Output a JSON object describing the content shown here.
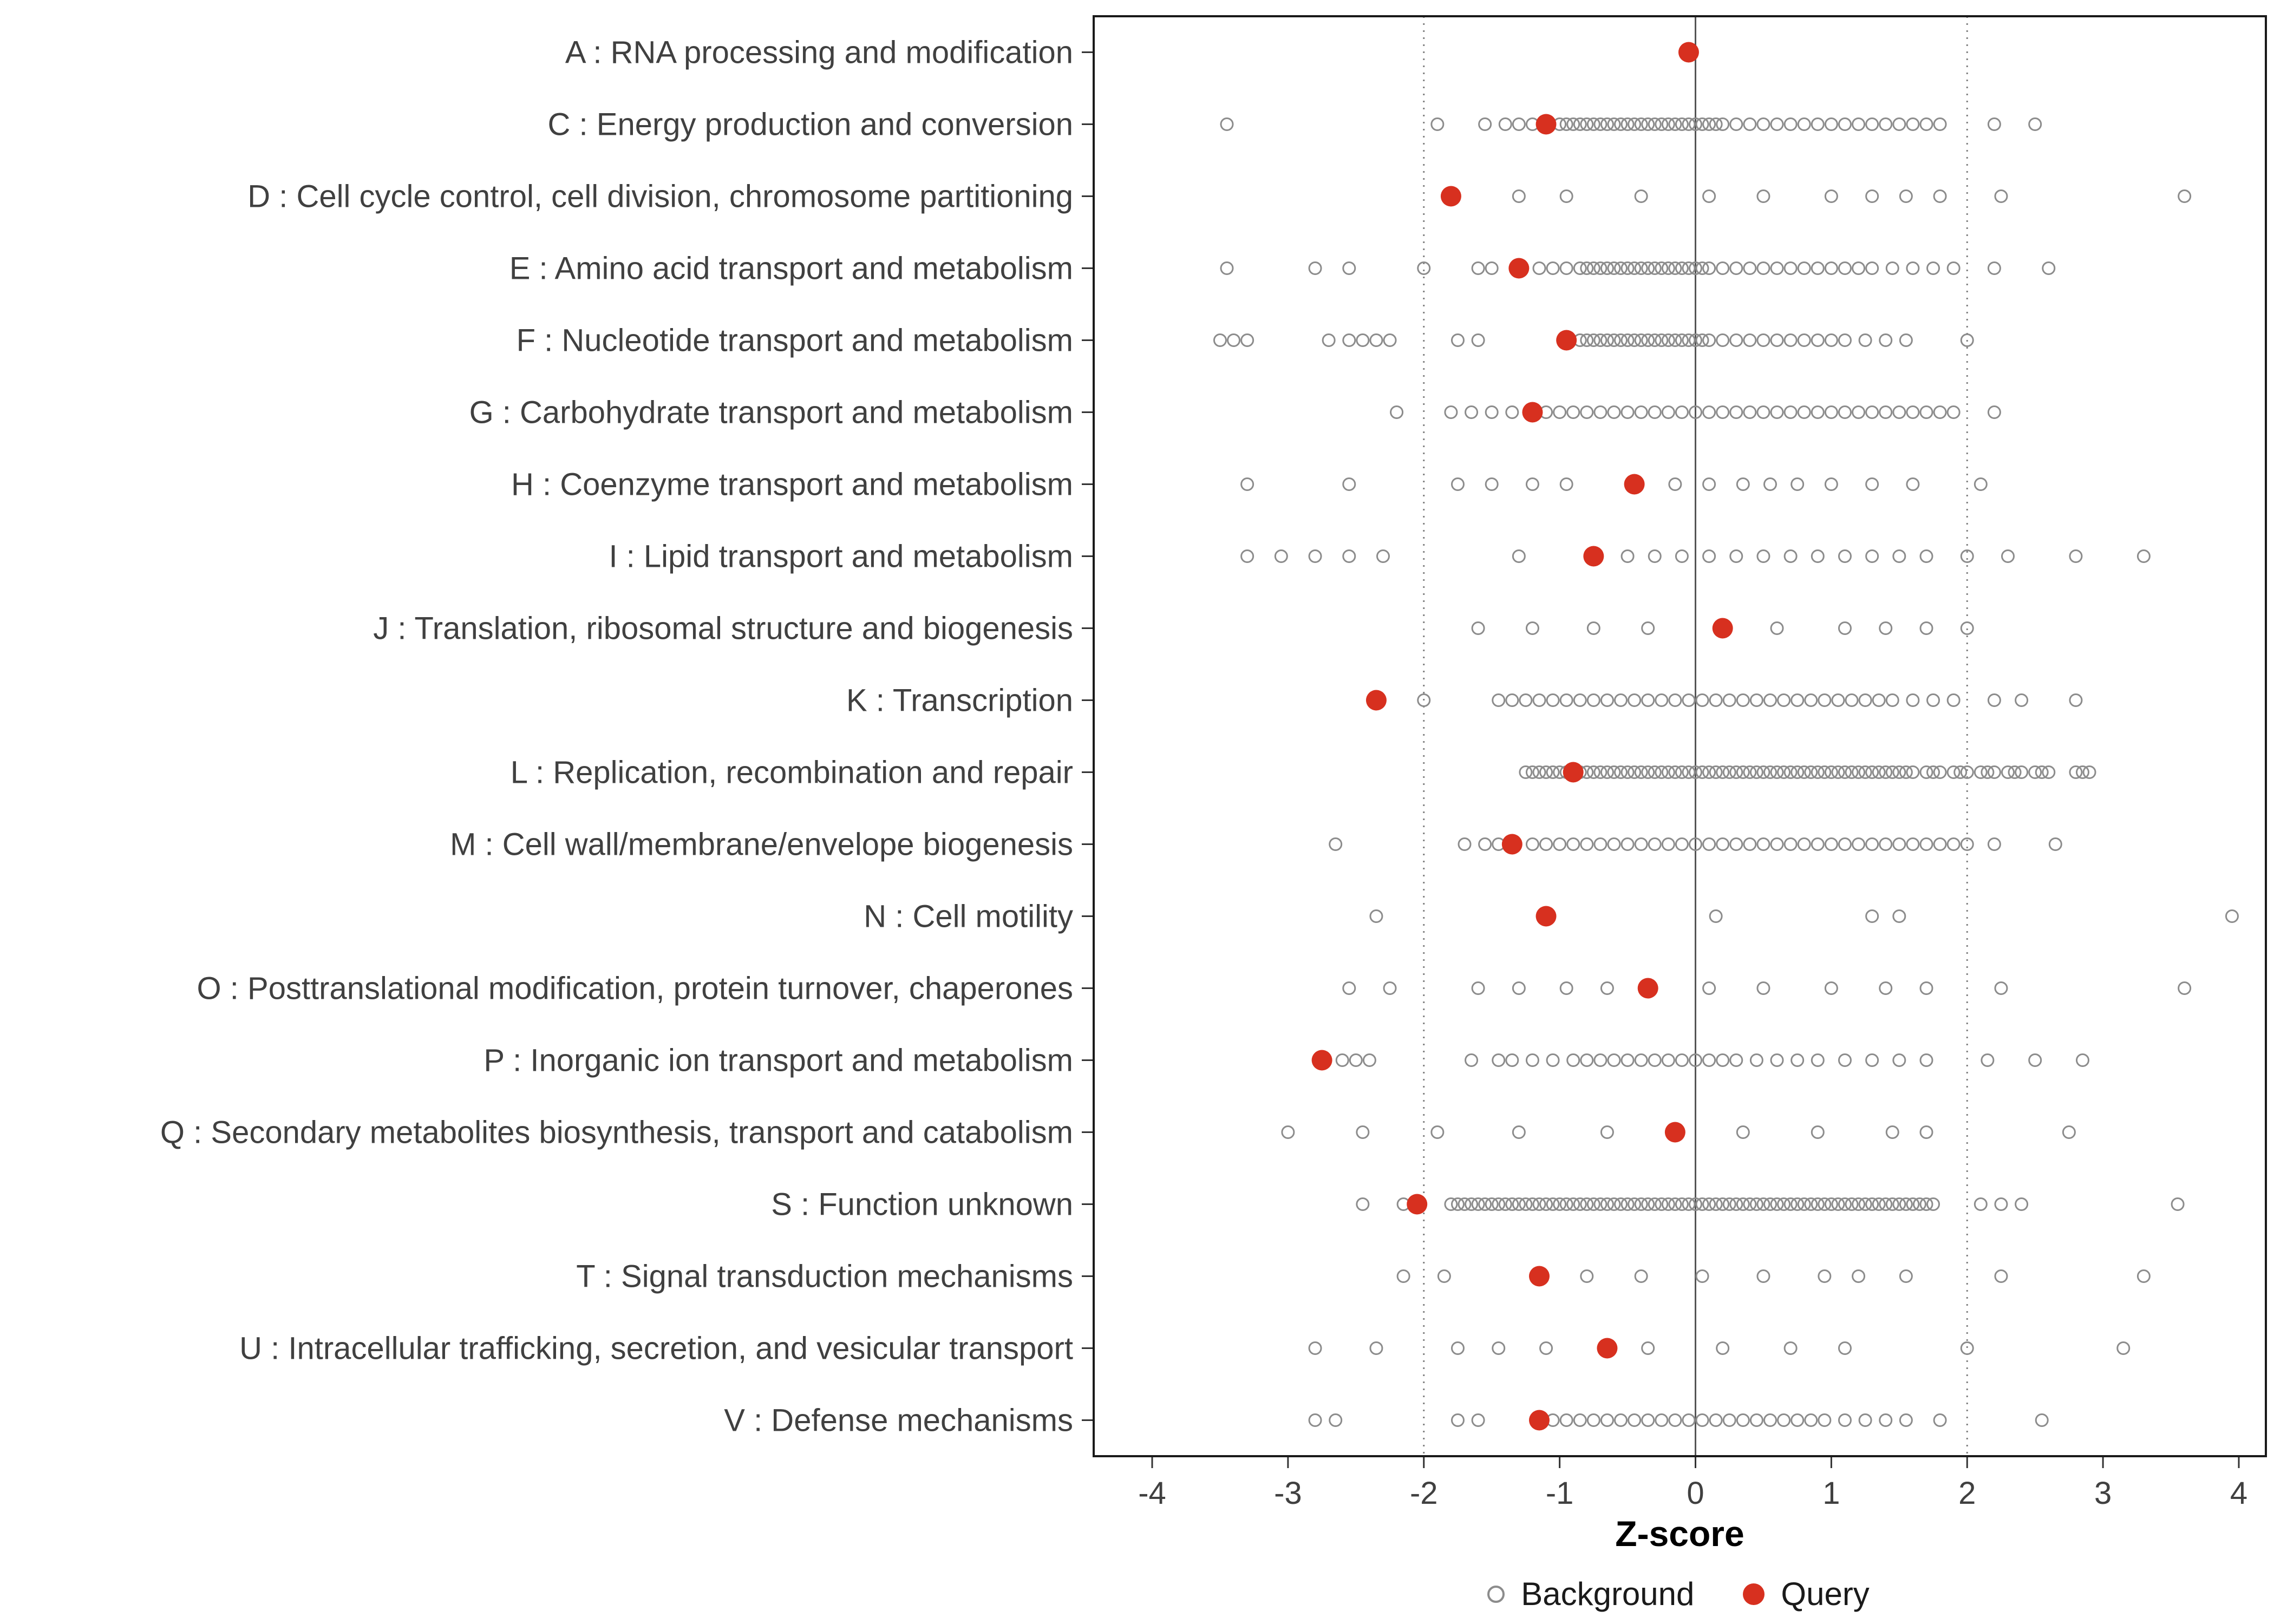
{
  "chart_data": {
    "type": "scatter",
    "title": "",
    "xlabel": "Z-score",
    "xlim": [
      -4,
      4
    ],
    "x_ticks": [
      -4,
      -3,
      -2,
      -1,
      0,
      1,
      2,
      3,
      4
    ],
    "grid": "off",
    "reference_lines": {
      "solid": [
        0
      ],
      "dotted": [
        -2,
        2
      ]
    },
    "legend": {
      "background_label": "Background",
      "query_label": "Query",
      "position": "bottom"
    },
    "colors": {
      "query": "#D7301F",
      "background_stroke": "#8C8C8C",
      "axis_text": "#404040",
      "panel_border": "#1a1a1a",
      "zero_line": "#555555",
      "dotted_line": "#808080"
    },
    "categories": [
      {
        "label": "A : RNA processing and modification",
        "query": -0.05,
        "background": []
      },
      {
        "label": "C : Energy production and conversion",
        "query": -1.1,
        "background": [
          -3.45,
          -1.9,
          -1.55,
          -1.4,
          -1.3,
          -1.2,
          -1.1,
          -1.0,
          -0.95,
          -0.9,
          -0.85,
          -0.8,
          -0.75,
          -0.7,
          -0.65,
          -0.6,
          -0.55,
          -0.5,
          -0.45,
          -0.4,
          -0.35,
          -0.3,
          -0.25,
          -0.2,
          -0.15,
          -0.1,
          -0.05,
          0,
          0.05,
          0.1,
          0.15,
          0.2,
          0.3,
          0.4,
          0.5,
          0.6,
          0.7,
          0.8,
          0.9,
          1.0,
          1.1,
          1.2,
          1.3,
          1.4,
          1.5,
          1.6,
          1.7,
          1.8,
          2.2,
          2.5
        ]
      },
      {
        "label": "D : Cell cycle control, cell division, chromosome partitioning",
        "query": -1.8,
        "background": [
          -1.3,
          -0.95,
          -0.4,
          0.1,
          0.5,
          1.0,
          1.3,
          1.55,
          1.8,
          2.25,
          3.6
        ]
      },
      {
        "label": "E : Amino acid transport and metabolism",
        "query": -1.3,
        "background": [
          -3.45,
          -2.8,
          -2.55,
          -2.0,
          -1.6,
          -1.5,
          -1.15,
          -1.05,
          -0.95,
          -0.85,
          -0.8,
          -0.75,
          -0.7,
          -0.65,
          -0.6,
          -0.55,
          -0.5,
          -0.45,
          -0.4,
          -0.35,
          -0.3,
          -0.25,
          -0.2,
          -0.15,
          -0.1,
          -0.05,
          0,
          0.05,
          0.1,
          0.2,
          0.3,
          0.4,
          0.5,
          0.6,
          0.7,
          0.8,
          0.9,
          1.0,
          1.1,
          1.2,
          1.3,
          1.45,
          1.6,
          1.75,
          1.9,
          2.2,
          2.6
        ]
      },
      {
        "label": "F : Nucleotide transport and metabolism",
        "query": -0.95,
        "background": [
          -3.5,
          -3.4,
          -3.3,
          -2.7,
          -2.55,
          -2.45,
          -2.35,
          -2.25,
          -1.75,
          -1.6,
          -0.85,
          -0.8,
          -0.75,
          -0.7,
          -0.65,
          -0.6,
          -0.55,
          -0.5,
          -0.45,
          -0.4,
          -0.35,
          -0.3,
          -0.25,
          -0.2,
          -0.15,
          -0.1,
          -0.05,
          0,
          0.05,
          0.1,
          0.2,
          0.3,
          0.4,
          0.5,
          0.6,
          0.7,
          0.8,
          0.9,
          1.0,
          1.1,
          1.25,
          1.4,
          1.55,
          2.0
        ]
      },
      {
        "label": "G : Carbohydrate transport and metabolism",
        "query": -1.2,
        "background": [
          -2.2,
          -1.8,
          -1.65,
          -1.5,
          -1.35,
          -1.1,
          -1.0,
          -0.9,
          -0.8,
          -0.7,
          -0.6,
          -0.5,
          -0.4,
          -0.3,
          -0.2,
          -0.1,
          0,
          0.1,
          0.2,
          0.3,
          0.4,
          0.5,
          0.6,
          0.7,
          0.8,
          0.9,
          1.0,
          1.1,
          1.2,
          1.3,
          1.4,
          1.5,
          1.6,
          1.7,
          1.8,
          1.9,
          2.2
        ]
      },
      {
        "label": "H : Coenzyme transport and metabolism",
        "query": -0.45,
        "background": [
          -3.3,
          -2.55,
          -1.75,
          -1.5,
          -1.2,
          -0.95,
          -0.15,
          0.1,
          0.35,
          0.55,
          0.75,
          1.0,
          1.3,
          1.6,
          2.1
        ]
      },
      {
        "label": "I : Lipid transport and metabolism",
        "query": -0.75,
        "background": [
          -3.3,
          -3.05,
          -2.8,
          -2.55,
          -2.3,
          -1.3,
          -0.5,
          -0.3,
          -0.1,
          0.1,
          0.3,
          0.5,
          0.7,
          0.9,
          1.1,
          1.3,
          1.5,
          1.7,
          2.0,
          2.3,
          2.8,
          3.3
        ]
      },
      {
        "label": "J : Translation, ribosomal structure and biogenesis",
        "query": 0.2,
        "background": [
          -1.6,
          -1.2,
          -0.75,
          -0.35,
          0.6,
          1.1,
          1.4,
          1.7,
          2.0
        ]
      },
      {
        "label": "K : Transcription",
        "query": -2.35,
        "background": [
          -2.0,
          -1.45,
          -1.35,
          -1.25,
          -1.15,
          -1.05,
          -0.95,
          -0.85,
          -0.75,
          -0.65,
          -0.55,
          -0.45,
          -0.35,
          -0.25,
          -0.15,
          -0.05,
          0.05,
          0.15,
          0.25,
          0.35,
          0.45,
          0.55,
          0.65,
          0.75,
          0.85,
          0.95,
          1.05,
          1.15,
          1.25,
          1.35,
          1.45,
          1.6,
          1.75,
          1.9,
          2.2,
          2.4,
          2.8
        ]
      },
      {
        "label": "L : Replication, recombination and repair",
        "query": -0.9,
        "background": [
          -1.25,
          -1.2,
          -1.15,
          -1.1,
          -1.05,
          -1.0,
          -0.95,
          -0.9,
          -0.85,
          -0.8,
          -0.75,
          -0.7,
          -0.65,
          -0.6,
          -0.55,
          -0.5,
          -0.45,
          -0.4,
          -0.35,
          -0.3,
          -0.25,
          -0.2,
          -0.15,
          -0.1,
          -0.05,
          0,
          0.05,
          0.1,
          0.15,
          0.2,
          0.25,
          0.3,
          0.35,
          0.4,
          0.45,
          0.5,
          0.55,
          0.6,
          0.65,
          0.7,
          0.75,
          0.8,
          0.85,
          0.9,
          0.95,
          1.0,
          1.05,
          1.1,
          1.15,
          1.2,
          1.25,
          1.3,
          1.35,
          1.4,
          1.45,
          1.5,
          1.55,
          1.6,
          1.7,
          1.75,
          1.8,
          1.9,
          1.95,
          2.0,
          2.1,
          2.15,
          2.2,
          2.3,
          2.35,
          2.4,
          2.5,
          2.55,
          2.6,
          2.8,
          2.85,
          2.9
        ]
      },
      {
        "label": "M : Cell wall/membrane/envelope biogenesis",
        "query": -1.35,
        "background": [
          -2.65,
          -1.7,
          -1.55,
          -1.45,
          -1.2,
          -1.1,
          -1.0,
          -0.9,
          -0.8,
          -0.7,
          -0.6,
          -0.5,
          -0.4,
          -0.3,
          -0.2,
          -0.1,
          0,
          0.1,
          0.2,
          0.3,
          0.4,
          0.5,
          0.6,
          0.7,
          0.8,
          0.9,
          1.0,
          1.1,
          1.2,
          1.3,
          1.4,
          1.5,
          1.6,
          1.7,
          1.8,
          1.9,
          2.0,
          2.2,
          2.65
        ]
      },
      {
        "label": "N : Cell motility",
        "query": -1.1,
        "background": [
          -2.35,
          0.15,
          1.3,
          1.5,
          3.95
        ]
      },
      {
        "label": "O : Posttranslational modification, protein turnover, chaperones",
        "query": -0.35,
        "background": [
          -2.55,
          -2.25,
          -1.6,
          -1.3,
          -0.95,
          -0.65,
          0.1,
          0.5,
          1.0,
          1.4,
          1.7,
          2.25,
          3.6
        ]
      },
      {
        "label": "P : Inorganic ion transport and metabolism",
        "query": -2.75,
        "background": [
          -2.6,
          -2.5,
          -2.4,
          -1.65,
          -1.45,
          -1.35,
          -1.2,
          -1.05,
          -0.9,
          -0.8,
          -0.7,
          -0.6,
          -0.5,
          -0.4,
          -0.3,
          -0.2,
          -0.1,
          0,
          0.1,
          0.2,
          0.3,
          0.45,
          0.6,
          0.75,
          0.9,
          1.1,
          1.3,
          1.5,
          1.7,
          2.15,
          2.5,
          2.85
        ]
      },
      {
        "label": "Q : Secondary metabolites biosynthesis, transport and catabolism",
        "query": -0.15,
        "background": [
          -3.0,
          -2.45,
          -1.9,
          -1.3,
          -0.65,
          0.35,
          0.9,
          1.45,
          1.7,
          2.75
        ]
      },
      {
        "label": "S : Function unknown",
        "query": -2.05,
        "background": [
          -2.45,
          -2.15,
          -1.8,
          -1.75,
          -1.7,
          -1.65,
          -1.6,
          -1.55,
          -1.5,
          -1.45,
          -1.4,
          -1.35,
          -1.3,
          -1.25,
          -1.2,
          -1.15,
          -1.1,
          -1.05,
          -1.0,
          -0.95,
          -0.9,
          -0.85,
          -0.8,
          -0.75,
          -0.7,
          -0.65,
          -0.6,
          -0.55,
          -0.5,
          -0.45,
          -0.4,
          -0.35,
          -0.3,
          -0.25,
          -0.2,
          -0.15,
          -0.1,
          -0.05,
          0,
          0.05,
          0.1,
          0.15,
          0.2,
          0.25,
          0.3,
          0.35,
          0.4,
          0.45,
          0.5,
          0.55,
          0.6,
          0.65,
          0.7,
          0.75,
          0.8,
          0.85,
          0.9,
          0.95,
          1.0,
          1.05,
          1.1,
          1.15,
          1.2,
          1.25,
          1.3,
          1.35,
          1.4,
          1.45,
          1.5,
          1.55,
          1.6,
          1.65,
          1.7,
          1.75,
          2.1,
          2.25,
          2.4,
          3.55
        ]
      },
      {
        "label": "T : Signal transduction mechanisms",
        "query": -1.15,
        "background": [
          -2.15,
          -1.85,
          -0.8,
          -0.4,
          0.05,
          0.5,
          0.95,
          1.2,
          1.55,
          2.25,
          3.3
        ]
      },
      {
        "label": "U : Intracellular trafficking, secretion, and vesicular transport",
        "query": -0.65,
        "background": [
          -2.8,
          -2.35,
          -1.75,
          -1.45,
          -1.1,
          -0.35,
          0.2,
          0.7,
          1.1,
          2.0,
          3.15
        ]
      },
      {
        "label": "V : Defense mechanisms",
        "query": -1.15,
        "background": [
          -2.8,
          -2.65,
          -1.75,
          -1.6,
          -1.05,
          -0.95,
          -0.85,
          -0.75,
          -0.65,
          -0.55,
          -0.45,
          -0.35,
          -0.25,
          -0.15,
          -0.05,
          0.05,
          0.15,
          0.25,
          0.35,
          0.45,
          0.55,
          0.65,
          0.75,
          0.85,
          0.95,
          1.1,
          1.25,
          1.4,
          1.55,
          1.8,
          2.55
        ]
      }
    ]
  }
}
